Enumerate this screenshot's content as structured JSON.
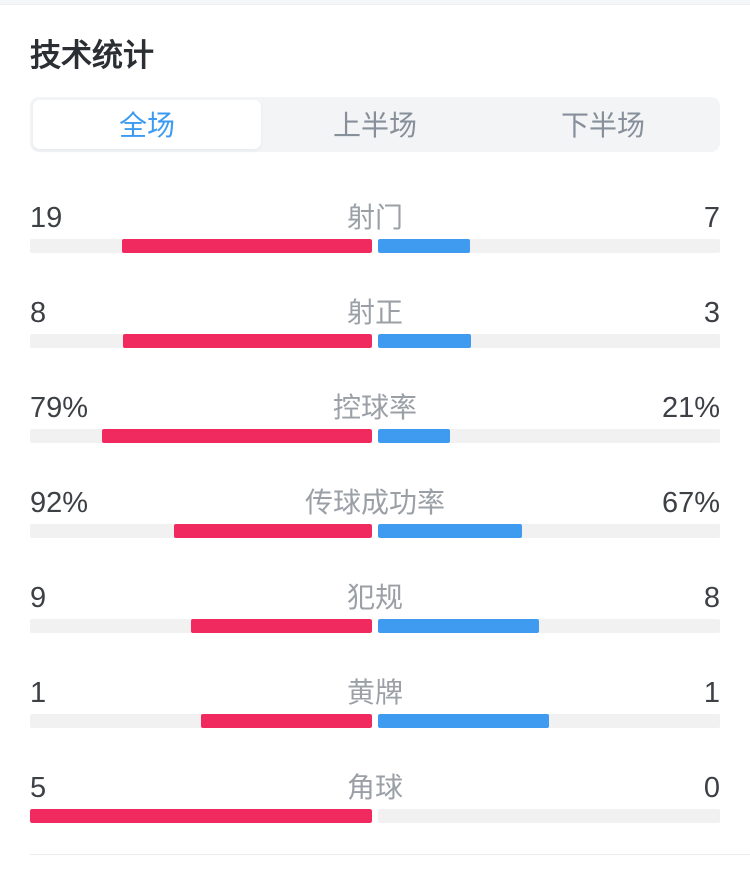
{
  "page": {
    "title": "技术统计"
  },
  "tabs": {
    "items": [
      {
        "label": "全场",
        "active": true
      },
      {
        "label": "上半场",
        "active": false
      },
      {
        "label": "下半场",
        "active": false
      }
    ]
  },
  "colors": {
    "home_bar": "#f02a5f",
    "away_bar": "#3f9bf0",
    "track": "#f1f1f2",
    "active_tab_text": "#3b9bf2"
  },
  "stats": [
    {
      "label": "射门",
      "home": "19",
      "away": "7",
      "home_val": 19,
      "away_val": 7
    },
    {
      "label": "射正",
      "home": "8",
      "away": "3",
      "home_val": 8,
      "away_val": 3
    },
    {
      "label": "控球率",
      "home": "79%",
      "away": "21%",
      "home_val": 79,
      "away_val": 21
    },
    {
      "label": "传球成功率",
      "home": "92%",
      "away": "67%",
      "home_val": 92,
      "away_val": 67
    },
    {
      "label": "犯规",
      "home": "9",
      "away": "8",
      "home_val": 9,
      "away_val": 8
    },
    {
      "label": "黄牌",
      "home": "1",
      "away": "1",
      "home_val": 1,
      "away_val": 1
    },
    {
      "label": "角球",
      "home": "5",
      "away": "0",
      "home_val": 5,
      "away_val": 0
    }
  ]
}
